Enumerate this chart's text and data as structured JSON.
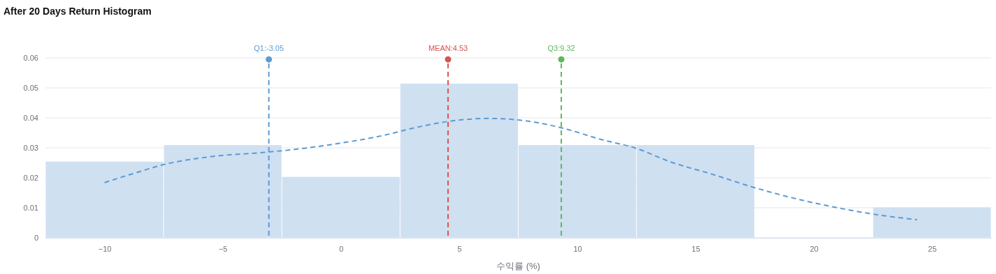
{
  "chart_data": {
    "type": "histogram",
    "title": "After 20 Days Return Histogram",
    "xlabel": "수익률 (%)",
    "bins": [
      -12.5,
      -7.5,
      -2.5,
      2.5,
      7.5,
      12.5,
      17.5,
      22.5,
      27.5
    ],
    "values": [
      0.0254,
      0.0309,
      0.0203,
      0.0514,
      0.0309,
      0.0309,
      0,
      0.0101
    ],
    "color": "#cfe0f1",
    "series": [
      {
        "type": "line",
        "line_style": "dashed",
        "color": "#5b9bd5",
        "x": [
          -10,
          -8.5,
          -7.5,
          -5.55,
          -3.05,
          -1.4,
          0,
          1.54,
          3.3,
          4.53,
          6.26,
          7.5,
          9.32,
          11,
          12.5,
          13.94,
          15.7,
          17.5,
          19.25,
          21,
          22.5,
          24.37
        ],
        "values": [
          0.0184,
          0.0221,
          0.0244,
          0.027,
          0.0286,
          0.03,
          0.0316,
          0.0337,
          0.037,
          0.0388,
          0.0398,
          0.0393,
          0.0367,
          0.0328,
          0.0298,
          0.0253,
          0.0212,
          0.0167,
          0.013,
          0.01,
          0.0079,
          0.006
        ]
      },
      {
        "type": "scatter",
        "marker": "circle",
        "x": [
          -3.05,
          4.53,
          9.32
        ],
        "values": [
          0.0595,
          0.0595,
          0.0595
        ],
        "colors": [
          "#5b9bd5",
          "#d9534f",
          "#5cb85c"
        ]
      }
    ],
    "xlim": [
      -12.5,
      27.5
    ],
    "xticks": [
      {
        "value": -10,
        "label": "−10"
      },
      {
        "value": -5,
        "label": "−5"
      },
      0,
      5,
      10,
      15,
      20,
      25
    ],
    "ylim": [
      0,
      0.06
    ],
    "yticks": [
      0,
      0.01,
      0.02,
      0.03,
      0.04,
      0.05,
      0.06
    ],
    "grid": "y",
    "ref_lines": [
      {
        "axis": "x",
        "value": -3.05,
        "label": "Q1:-3.05",
        "color": "#5b9bd5",
        "line_style": "dashed"
      },
      {
        "axis": "x",
        "value": 4.53,
        "label": "MEAN:4.53",
        "color": "#d9534f",
        "line_style": "dashed"
      },
      {
        "axis": "x",
        "value": 9.32,
        "label": "Q3:9.32",
        "color": "#5cb85c",
        "line_style": "dashed"
      }
    ]
  }
}
